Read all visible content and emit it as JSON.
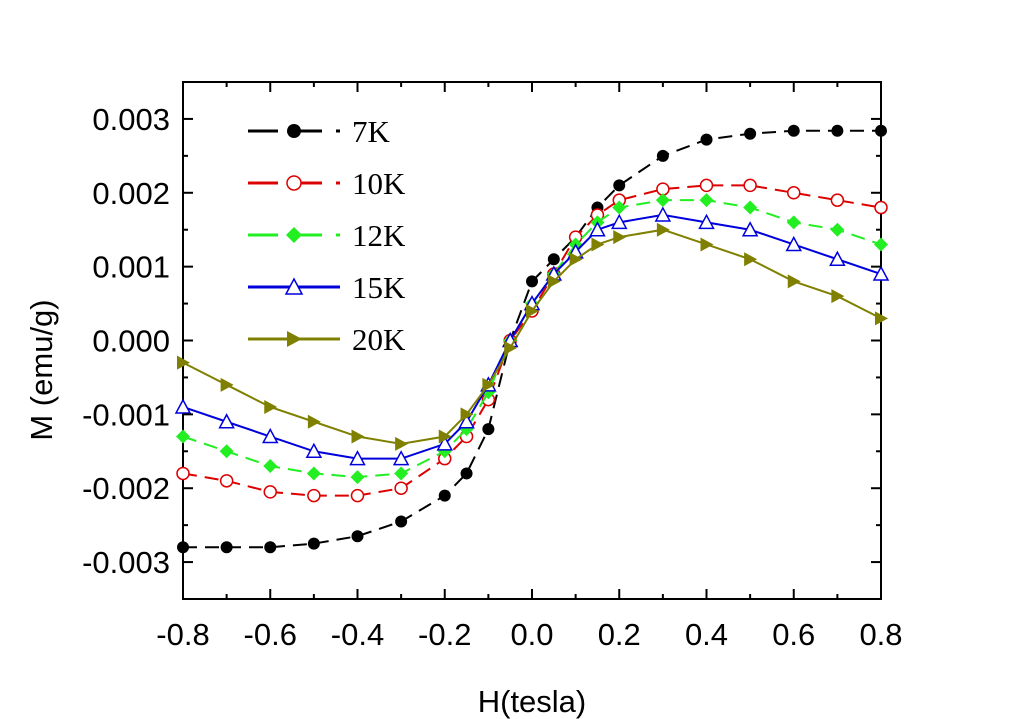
{
  "chart_data": {
    "type": "scatter",
    "title": "",
    "xlabel": "H(tesla)",
    "ylabel": "M (emu/g)",
    "xlim": [
      -0.8,
      0.8
    ],
    "ylim": [
      -0.0035,
      0.0035
    ],
    "xticks": [
      "-0.8",
      "-0.6",
      "-0.4",
      "-0.2",
      "0.0",
      "0.2",
      "0.4",
      "0.6",
      "0.8"
    ],
    "yticks": [
      "-0.003",
      "-0.002",
      "-0.001",
      "0.000",
      "0.001",
      "0.002",
      "0.003"
    ],
    "grid": false,
    "legend_position": "top-left",
    "series": [
      {
        "name": "7K",
        "color": "#000000",
        "marker": "filled-circle",
        "line": "dashed",
        "x": [
          -0.8,
          -0.7,
          -0.6,
          -0.5,
          -0.4,
          -0.3,
          -0.2,
          -0.15,
          -0.1,
          -0.05,
          0.0,
          0.05,
          0.1,
          0.15,
          0.2,
          0.3,
          0.4,
          0.5,
          0.6,
          0.7,
          0.8
        ],
        "y": [
          -0.0028,
          -0.0028,
          -0.0028,
          -0.00275,
          -0.00265,
          -0.00245,
          -0.0021,
          -0.0018,
          -0.0012,
          0.0,
          0.0008,
          0.0011,
          0.0014,
          0.0018,
          0.0021,
          0.0025,
          0.00272,
          0.0028,
          0.00284,
          0.00284,
          0.00284
        ]
      },
      {
        "name": "10K",
        "color": "#dd0000",
        "marker": "open-circle",
        "line": "dashed",
        "x": [
          -0.8,
          -0.7,
          -0.6,
          -0.5,
          -0.4,
          -0.3,
          -0.2,
          -0.15,
          -0.1,
          -0.05,
          0.0,
          0.05,
          0.1,
          0.15,
          0.2,
          0.3,
          0.4,
          0.5,
          0.6,
          0.7,
          0.8
        ],
        "y": [
          -0.0018,
          -0.0019,
          -0.00205,
          -0.0021,
          -0.0021,
          -0.002,
          -0.0016,
          -0.0013,
          -0.0008,
          0.0,
          0.0004,
          0.0009,
          0.0014,
          0.0017,
          0.0019,
          0.00205,
          0.0021,
          0.0021,
          0.002,
          0.0019,
          0.0018
        ]
      },
      {
        "name": "12K",
        "color": "#22ee22",
        "marker": "filled-diamond",
        "line": "dashed",
        "x": [
          -0.8,
          -0.7,
          -0.6,
          -0.5,
          -0.4,
          -0.3,
          -0.2,
          -0.15,
          -0.1,
          -0.05,
          0.0,
          0.05,
          0.1,
          0.15,
          0.2,
          0.3,
          0.4,
          0.5,
          0.6,
          0.7,
          0.8
        ],
        "y": [
          -0.0013,
          -0.0015,
          -0.0017,
          -0.0018,
          -0.00185,
          -0.0018,
          -0.0015,
          -0.0012,
          -0.0007,
          0.0,
          0.0005,
          0.0009,
          0.0013,
          0.0016,
          0.0018,
          0.0019,
          0.0019,
          0.0018,
          0.0016,
          0.0015,
          0.0013
        ]
      },
      {
        "name": "15K",
        "color": "#0000dd",
        "marker": "open-triangle",
        "line": "solid",
        "x": [
          -0.8,
          -0.7,
          -0.6,
          -0.5,
          -0.4,
          -0.3,
          -0.2,
          -0.15,
          -0.1,
          -0.05,
          0.0,
          0.05,
          0.1,
          0.15,
          0.2,
          0.3,
          0.4,
          0.5,
          0.6,
          0.7,
          0.8
        ],
        "y": [
          -0.0009,
          -0.0011,
          -0.0013,
          -0.0015,
          -0.0016,
          -0.0016,
          -0.0014,
          -0.0011,
          -0.0006,
          0.0,
          0.0005,
          0.0009,
          0.0012,
          0.0015,
          0.0016,
          0.0017,
          0.0016,
          0.0015,
          0.0013,
          0.0011,
          0.0009
        ]
      },
      {
        "name": "20K",
        "color": "#808000",
        "marker": "filled-triangle-right",
        "line": "solid",
        "x": [
          -0.8,
          -0.7,
          -0.6,
          -0.5,
          -0.4,
          -0.3,
          -0.2,
          -0.15,
          -0.1,
          -0.05,
          0.0,
          0.05,
          0.1,
          0.15,
          0.2,
          0.3,
          0.4,
          0.5,
          0.6,
          0.7,
          0.8
        ],
        "y": [
          -0.0003,
          -0.0006,
          -0.0009,
          -0.0011,
          -0.0013,
          -0.0014,
          -0.0013,
          -0.001,
          -0.0006,
          -0.0001,
          0.0004,
          0.0008,
          0.0011,
          0.0013,
          0.0014,
          0.0015,
          0.0013,
          0.0011,
          0.0008,
          0.0006,
          0.0003
        ]
      }
    ]
  }
}
